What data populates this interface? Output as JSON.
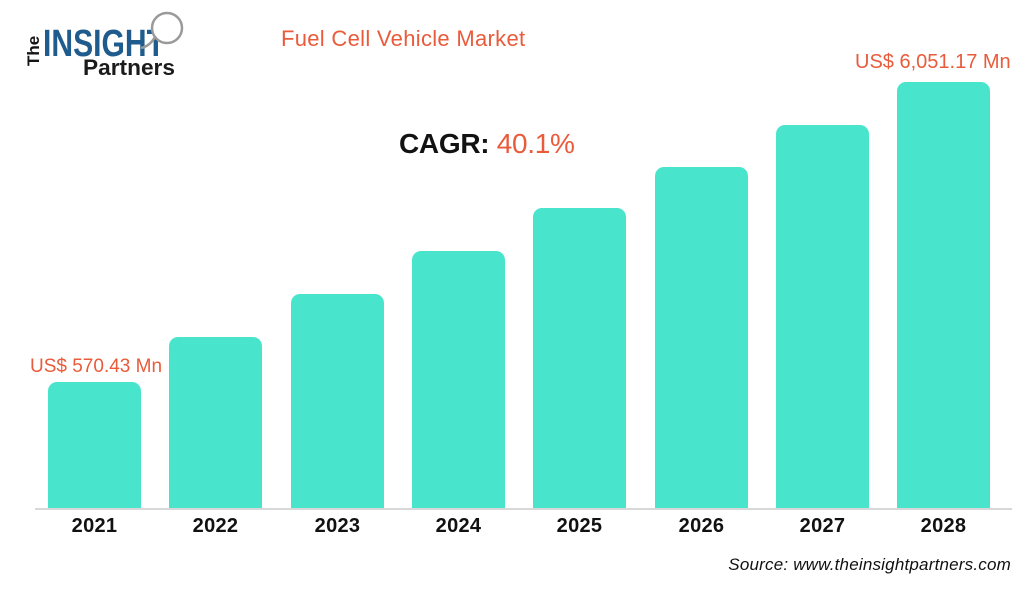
{
  "header": {
    "logo": {
      "the": "The",
      "insight": "INSIGHT",
      "partners": "Partners"
    },
    "title": "Fuel Cell Vehicle Market"
  },
  "cagr": {
    "label": "CAGR:",
    "value": "40.1%"
  },
  "annotations": {
    "first_bar_label": "US$ 570.43 Mn",
    "last_bar_label": "US$ 6,051.17 Mn"
  },
  "footer": {
    "source": "Source: www.theinsightpartners.com"
  },
  "colors": {
    "bar_teal": "#49E4CC",
    "accent_orange": "#E95B3B",
    "logo_blue": "#1F5C8D",
    "axis_line": "#D8D8D8",
    "magnifier_gray": "#9A9A9A"
  },
  "chart_data": {
    "type": "bar",
    "title": "Fuel Cell Vehicle Market",
    "categories": [
      "2021",
      "2022",
      "2023",
      "2024",
      "2025",
      "2026",
      "2027",
      "2028"
    ],
    "values": [
      570.43,
      null,
      null,
      null,
      null,
      null,
      null,
      6051.17
    ],
    "unit": "US$ Mn",
    "cagr_percent": 40.1,
    "data_labels": [
      "US$ 570.43 Mn",
      null,
      null,
      null,
      null,
      null,
      null,
      "US$ 6,051.17 Mn"
    ],
    "bar_heights_pct": [
      29.9,
      40.4,
      50.5,
      60.5,
      70.6,
      80.1,
      90.0,
      100
    ],
    "xlabel": "",
    "ylabel": "",
    "grid": false,
    "legend": false,
    "y_axis_shown": false
  }
}
